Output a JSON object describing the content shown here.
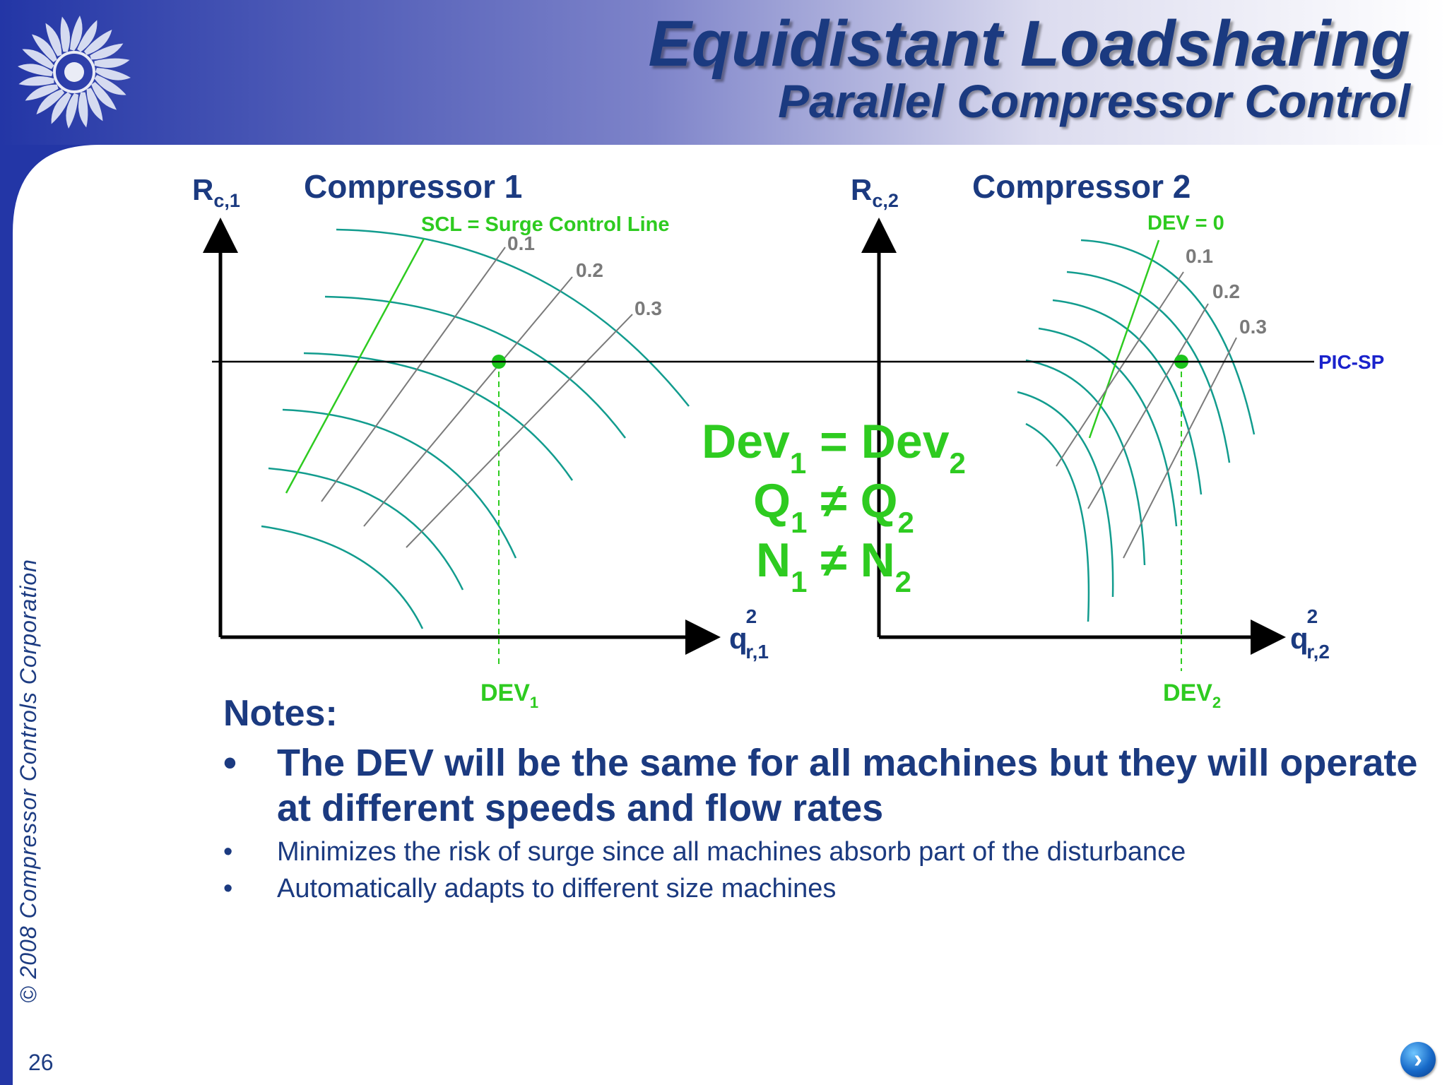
{
  "header": {
    "title": "Equidistant Loadsharing",
    "subtitle": "Parallel Compressor Control"
  },
  "sidebar": {
    "copyright": "© 2008  Compressor Controls Corporation"
  },
  "footer": {
    "slide_number": "26",
    "next_icon": "chevron-right-icon"
  },
  "diagram": {
    "compressor1": {
      "axis_y": "R",
      "axis_y_sub": "c,1",
      "title": "Compressor 1",
      "scl_label": "SCL = Surge Control Line",
      "dev_labels": [
        "0.1",
        "0.2",
        "0.3"
      ],
      "axis_x": "q",
      "axis_x_sup": "2",
      "axis_x_sub": "r,1",
      "dev_base": "DEV",
      "dev_sub": "1"
    },
    "compressor2": {
      "axis_y": "R",
      "axis_y_sub": "c,2",
      "title": "Compressor 2",
      "dev_zero_label": "DEV = 0",
      "dev_labels": [
        "0.1",
        "0.2",
        "0.3"
      ],
      "axis_x": "q",
      "axis_x_sup": "2",
      "axis_x_sub": "r,2",
      "dev_base": "DEV",
      "dev_sub": "2"
    },
    "setpoint_label": "PIC-SP",
    "equations": [
      {
        "left": "Dev",
        "left_sub": "1",
        "op": "=",
        "right": "Dev",
        "right_sub": "2"
      },
      {
        "left": "Q",
        "left_sub": "1",
        "op": "≠",
        "right": "Q",
        "right_sub": "2"
      },
      {
        "left": "N",
        "left_sub": "1",
        "op": "≠",
        "right": "N",
        "right_sub": "2"
      }
    ],
    "colors": {
      "axis": "#000000",
      "speed_curve": "#129c8e",
      "surge_line": "#2ecb20",
      "deviation_line": "#7a7a7a",
      "operating_point": "#1cc41c",
      "setpoint_label": "#1a22cc",
      "title_blue": "#1b3a80"
    }
  },
  "notes": {
    "heading": "Notes:",
    "items": [
      {
        "bullet": "•",
        "text": "The DEV will be the same for all machines but they will operate at different speeds and flow rates",
        "size": "large"
      },
      {
        "bullet": "•",
        "text": "Minimizes the risk of surge since all machines absorb part of the disturbance",
        "size": "small"
      },
      {
        "bullet": "•",
        "text": "Automatically adapts to different size machines",
        "size": "small"
      }
    ]
  }
}
